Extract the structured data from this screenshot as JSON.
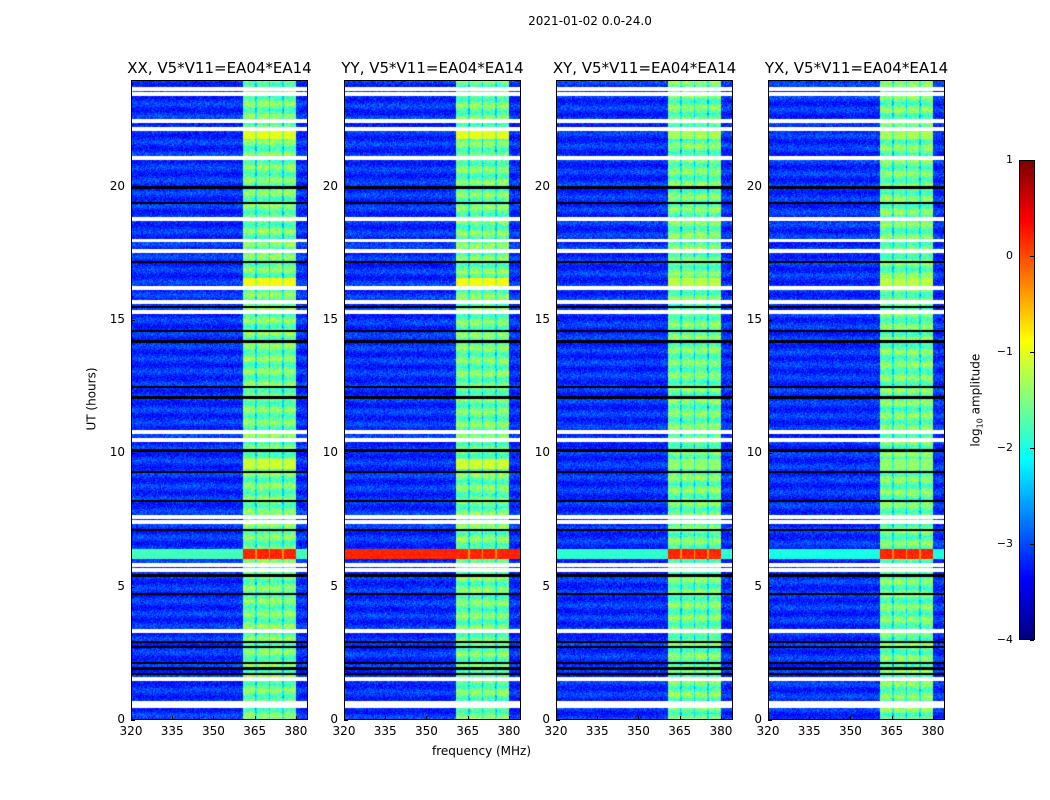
{
  "chart_data": {
    "type": "heatmap",
    "title": "2021-01-02 0.0-24.0",
    "xlabel": "frequency (MHz)",
    "ylabel": "UT (hours)",
    "xlim": [
      320,
      384.4
    ],
    "ylim": [
      0,
      24
    ],
    "xticks": [
      320,
      335,
      350,
      365,
      380
    ],
    "yticks": [
      0,
      5,
      10,
      15,
      20
    ],
    "panels": [
      {
        "title": "XX, V5*V11=EA04*EA14",
        "event_6h_fullband": -1.8
      },
      {
        "title": "YY, V5*V11=EA04*EA14",
        "event_6h_fullband": 0.2
      },
      {
        "title": "XY, V5*V11=EA04*EA14",
        "event_6h_fullband": -1.9
      },
      {
        "title": "YX, V5*V11=EA04*EA14",
        "event_6h_fullband": -2.0
      }
    ],
    "background_log10_amplitude": -3.3,
    "rfi_band_mhz": [
      360.7,
      380.2
    ],
    "rfi_band_log10_amplitude": -1.8,
    "events": [
      {
        "hour": 6.2,
        "rfi_log10_amplitude": 0.2
      },
      {
        "hour": 16.4,
        "rfi_log10_amplitude": -0.9
      },
      {
        "hour": 9.6,
        "rfi_log10_amplitude": -1.1
      },
      {
        "hour": 22.0,
        "rfi_log10_amplitude": -1.0
      }
    ],
    "flagged_hours_white": [
      23.7,
      23.5,
      22.5,
      22.2,
      21.1,
      18.8,
      18.0,
      17.6,
      16.2,
      15.7,
      15.3,
      10.8,
      10.5,
      7.6,
      7.4,
      5.8,
      5.6,
      3.3,
      1.5,
      0.6,
      0.5
    ],
    "flagged_hours_black": [
      20.0,
      19.4,
      17.2,
      15.5,
      14.6,
      14.2,
      12.5,
      12.1,
      10.1,
      9.3,
      8.2,
      7.1,
      5.4,
      4.7,
      2.9,
      2.7,
      2.1,
      1.9,
      1.7
    ],
    "colorbar": {
      "label_main": "log",
      "label_sub": "10",
      "label_rest": " amplitude",
      "range": [
        -4,
        1
      ],
      "ticks": [
        1,
        0,
        -1,
        -2,
        -3,
        -4
      ],
      "tick_labels": [
        "1",
        "0",
        "−1",
        "−2",
        "−3",
        "−4"
      ],
      "colormap": "jet"
    }
  }
}
